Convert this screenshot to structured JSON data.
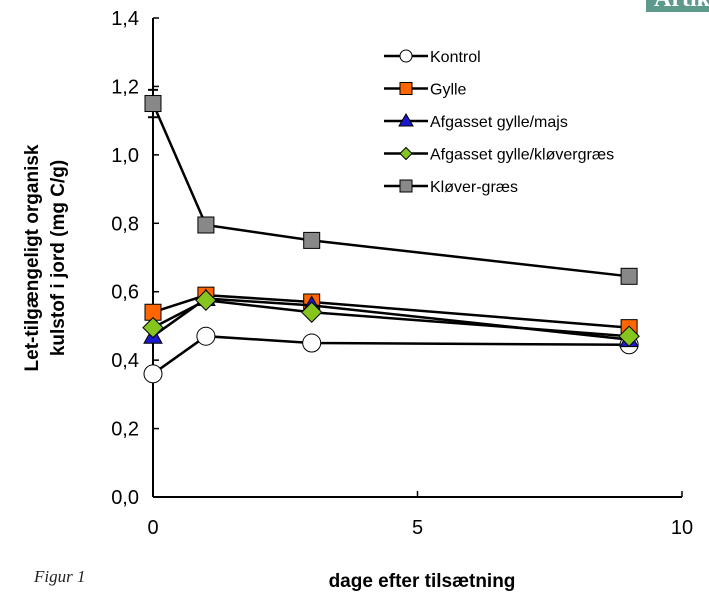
{
  "header_tab": "Artikler",
  "figure_label": "Figur 1",
  "chart_data": {
    "type": "line",
    "title": "",
    "xlabel": "dage efter tilsætning",
    "ylabel_line1": "Let-tilgængeligt organisk",
    "ylabel_line2": "kulstof i jord (mg C/g)",
    "xlim": [
      0,
      10
    ],
    "ylim": [
      0,
      1.4
    ],
    "x_ticks": [
      0,
      5,
      10
    ],
    "x_tick_labels": [
      "0",
      "5",
      "10"
    ],
    "y_ticks": [
      0,
      0.2,
      0.4,
      0.6,
      0.8,
      1.0,
      1.2,
      1.4
    ],
    "y_tick_labels": [
      "0,0",
      "0,2",
      "0,4",
      "0,6",
      "0,8",
      "1,0",
      "1,2",
      "1,4"
    ],
    "grid": false,
    "legend_position": "top-right",
    "series": [
      {
        "name": "Kontrol",
        "marker": "circle",
        "fill": "#ffffff",
        "x": [
          0,
          1,
          3,
          9
        ],
        "y": [
          0.36,
          0.47,
          0.45,
          0.445
        ]
      },
      {
        "name": "Gylle",
        "marker": "square",
        "fill": "#ff6600",
        "x": [
          0,
          1,
          3,
          9
        ],
        "y": [
          0.54,
          0.59,
          0.57,
          0.495
        ]
      },
      {
        "name": "Afgasset gylle/majs",
        "marker": "triangle",
        "fill": "#1a1acc",
        "x": [
          0,
          1,
          3,
          9
        ],
        "y": [
          0.47,
          0.58,
          0.56,
          0.46
        ]
      },
      {
        "name": "Afgasset gylle/kløvergræs",
        "marker": "diamond",
        "fill": "#86c51e",
        "x": [
          0,
          1,
          3,
          9
        ],
        "y": [
          0.495,
          0.575,
          0.54,
          0.47
        ]
      },
      {
        "name": "Kløver-græs",
        "marker": "square",
        "fill": "#888888",
        "x": [
          0,
          1,
          3,
          9
        ],
        "y": [
          1.15,
          0.795,
          0.75,
          0.645
        ]
      }
    ],
    "error_bar": {
      "x": 0,
      "y_low": 1.11,
      "y_high": 1.19
    }
  }
}
